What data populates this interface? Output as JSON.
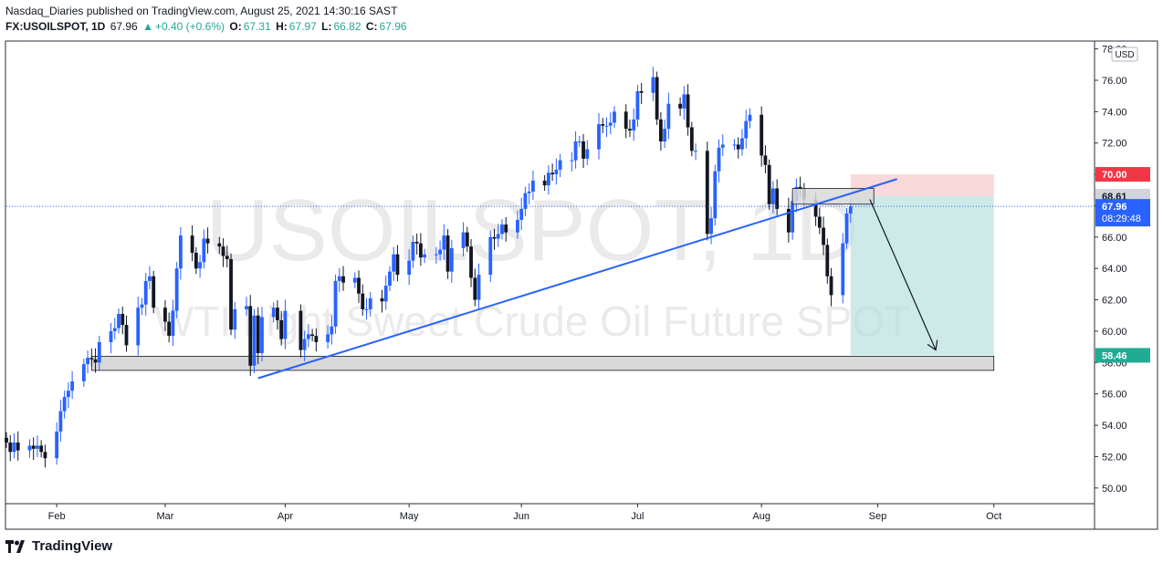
{
  "header": {
    "published_line": "Nasdaq_Diaries published on TradingView.com, August 25, 2021 14:30:16 SAST",
    "symbol": "FX:USOILSPOT, 1D",
    "last": "67.96",
    "change": "+0.40 (+0.6%)",
    "o_label": "O:",
    "o_value": "67.31",
    "h_label": "H:",
    "h_value": "67.97",
    "l_label": "L:",
    "l_value": "66.82",
    "c_label": "C:",
    "c_value": "67.96"
  },
  "watermark": {
    "symbol": "USOILSPOT, 1D",
    "description": "WTI Light Sweet Crude Oil Future SPOT"
  },
  "footer": {
    "brand": "TradingView"
  },
  "colors": {
    "up": "#2962ff",
    "down": "#131722",
    "trendline": "#2962ff",
    "stop_zone": "#f7c9c9",
    "target_zone": "#b2dfdb",
    "zone_box": "#d9d9d9",
    "price_dotted": "#2962ff"
  },
  "chart_data": {
    "type": "candlestick",
    "currency": "USD",
    "ylim": [
      49,
      78.5
    ],
    "y_ticks": [
      "50.00",
      "52.00",
      "54.00",
      "56.00",
      "58.00",
      "60.00",
      "62.00",
      "64.00",
      "66.00",
      "68.00",
      "70.00",
      "72.00",
      "74.00",
      "76.00",
      "78.00"
    ],
    "x_ticks": [
      {
        "label": "Feb",
        "date": "2021-02-01"
      },
      {
        "label": "Mar",
        "date": "2021-03-01"
      },
      {
        "label": "Apr",
        "date": "2021-04-01"
      },
      {
        "label": "May",
        "date": "2021-05-03"
      },
      {
        "label": "Jun",
        "date": "2021-06-01"
      },
      {
        "label": "Jul",
        "date": "2021-07-01"
      },
      {
        "label": "Aug",
        "date": "2021-08-02"
      },
      {
        "label": "Sep",
        "date": "2021-09-01"
      },
      {
        "label": "Oct",
        "date": "2021-10-01"
      }
    ],
    "x_range": [
      "2021-01-19",
      "2021-10-27"
    ],
    "series_close": [
      {
        "date": "2021-01-19",
        "close": 52.9
      },
      {
        "date": "2021-01-20",
        "close": 52.3
      },
      {
        "date": "2021-01-21",
        "close": 52.9
      },
      {
        "date": "2021-01-22",
        "close": 52.4
      },
      {
        "date": "2021-01-25",
        "close": 52.7
      },
      {
        "date": "2021-01-26",
        "close": 52.5
      },
      {
        "date": "2021-01-27",
        "close": 52.7
      },
      {
        "date": "2021-01-28",
        "close": 52.3
      },
      {
        "date": "2021-01-29",
        "close": 51.9
      },
      {
        "date": "2021-02-01",
        "close": 53.6
      },
      {
        "date": "2021-02-02",
        "close": 54.9
      },
      {
        "date": "2021-02-03",
        "close": 55.8
      },
      {
        "date": "2021-02-04",
        "close": 56.2
      },
      {
        "date": "2021-02-05",
        "close": 56.8
      },
      {
        "date": "2021-02-08",
        "close": 57.9
      },
      {
        "date": "2021-02-09",
        "close": 58.3
      },
      {
        "date": "2021-02-10",
        "close": 58.2
      },
      {
        "date": "2021-02-11",
        "close": 58.0
      },
      {
        "date": "2021-02-12",
        "close": 59.3
      },
      {
        "date": "2021-02-15",
        "close": 60.0
      },
      {
        "date": "2021-02-16",
        "close": 60.2
      },
      {
        "date": "2021-02-17",
        "close": 61.1
      },
      {
        "date": "2021-02-18",
        "close": 60.4
      },
      {
        "date": "2021-02-19",
        "close": 59.1
      },
      {
        "date": "2021-02-22",
        "close": 61.5
      },
      {
        "date": "2021-02-23",
        "close": 61.7
      },
      {
        "date": "2021-02-24",
        "close": 63.2
      },
      {
        "date": "2021-02-25",
        "close": 63.5
      },
      {
        "date": "2021-02-26",
        "close": 61.5
      },
      {
        "date": "2021-03-01",
        "close": 60.6
      },
      {
        "date": "2021-03-02",
        "close": 59.7
      },
      {
        "date": "2021-03-03",
        "close": 61.3
      },
      {
        "date": "2021-03-04",
        "close": 64.0
      },
      {
        "date": "2021-03-05",
        "close": 66.1
      },
      {
        "date": "2021-03-08",
        "close": 65.0
      },
      {
        "date": "2021-03-09",
        "close": 64.0
      },
      {
        "date": "2021-03-10",
        "close": 64.4
      },
      {
        "date": "2021-03-11",
        "close": 65.9
      },
      {
        "date": "2021-03-12",
        "close": 65.6
      },
      {
        "date": "2021-03-15",
        "close": 65.4
      },
      {
        "date": "2021-03-16",
        "close": 64.8
      },
      {
        "date": "2021-03-17",
        "close": 64.6
      },
      {
        "date": "2021-03-18",
        "close": 60.1
      },
      {
        "date": "2021-03-19",
        "close": 61.4
      },
      {
        "date": "2021-03-22",
        "close": 61.6
      },
      {
        "date": "2021-03-23",
        "close": 57.8
      },
      {
        "date": "2021-03-24",
        "close": 61.0
      },
      {
        "date": "2021-03-25",
        "close": 58.6
      },
      {
        "date": "2021-03-26",
        "close": 60.9
      },
      {
        "date": "2021-03-29",
        "close": 61.5
      },
      {
        "date": "2021-03-30",
        "close": 60.7
      },
      {
        "date": "2021-03-31",
        "close": 59.5
      },
      {
        "date": "2021-04-01",
        "close": 61.3
      },
      {
        "date": "2021-04-05",
        "close": 58.8
      },
      {
        "date": "2021-04-06",
        "close": 59.5
      },
      {
        "date": "2021-04-07",
        "close": 59.8
      },
      {
        "date": "2021-04-08",
        "close": 59.7
      },
      {
        "date": "2021-04-09",
        "close": 59.3
      },
      {
        "date": "2021-04-12",
        "close": 59.8
      },
      {
        "date": "2021-04-13",
        "close": 60.3
      },
      {
        "date": "2021-04-14",
        "close": 63.2
      },
      {
        "date": "2021-04-15",
        "close": 63.5
      },
      {
        "date": "2021-04-16",
        "close": 63.1
      },
      {
        "date": "2021-04-19",
        "close": 63.4
      },
      {
        "date": "2021-04-20",
        "close": 62.4
      },
      {
        "date": "2021-04-21",
        "close": 61.4
      },
      {
        "date": "2021-04-22",
        "close": 61.4
      },
      {
        "date": "2021-04-23",
        "close": 62.1
      },
      {
        "date": "2021-04-26",
        "close": 61.9
      },
      {
        "date": "2021-04-27",
        "close": 62.9
      },
      {
        "date": "2021-04-28",
        "close": 63.8
      },
      {
        "date": "2021-04-29",
        "close": 64.9
      },
      {
        "date": "2021-04-30",
        "close": 63.6
      },
      {
        "date": "2021-05-03",
        "close": 64.5
      },
      {
        "date": "2021-05-04",
        "close": 65.7
      },
      {
        "date": "2021-05-05",
        "close": 65.6
      },
      {
        "date": "2021-05-06",
        "close": 64.7
      },
      {
        "date": "2021-05-07",
        "close": 64.9
      },
      {
        "date": "2021-05-10",
        "close": 64.9
      },
      {
        "date": "2021-05-11",
        "close": 65.2
      },
      {
        "date": "2021-05-12",
        "close": 66.1
      },
      {
        "date": "2021-05-13",
        "close": 63.8
      },
      {
        "date": "2021-05-14",
        "close": 65.3
      },
      {
        "date": "2021-05-17",
        "close": 66.3
      },
      {
        "date": "2021-05-18",
        "close": 65.4
      },
      {
        "date": "2021-05-19",
        "close": 63.4
      },
      {
        "date": "2021-05-20",
        "close": 62.0
      },
      {
        "date": "2021-05-21",
        "close": 63.6
      },
      {
        "date": "2021-05-24",
        "close": 66.0
      },
      {
        "date": "2021-05-25",
        "close": 65.9
      },
      {
        "date": "2021-05-26",
        "close": 66.2
      },
      {
        "date": "2021-05-27",
        "close": 66.8
      },
      {
        "date": "2021-05-28",
        "close": 66.3
      },
      {
        "date": "2021-05-31",
        "close": 67.1
      },
      {
        "date": "2021-06-01",
        "close": 67.8
      },
      {
        "date": "2021-06-02",
        "close": 68.8
      },
      {
        "date": "2021-06-03",
        "close": 68.9
      },
      {
        "date": "2021-06-04",
        "close": 69.6
      },
      {
        "date": "2021-06-07",
        "close": 69.3
      },
      {
        "date": "2021-06-08",
        "close": 70.1
      },
      {
        "date": "2021-06-09",
        "close": 70.0
      },
      {
        "date": "2021-06-10",
        "close": 70.3
      },
      {
        "date": "2021-06-11",
        "close": 70.9
      },
      {
        "date": "2021-06-14",
        "close": 70.9
      },
      {
        "date": "2021-06-15",
        "close": 72.1
      },
      {
        "date": "2021-06-16",
        "close": 72.1
      },
      {
        "date": "2021-06-17",
        "close": 71.0
      },
      {
        "date": "2021-06-18",
        "close": 71.6
      },
      {
        "date": "2021-06-21",
        "close": 73.2
      },
      {
        "date": "2021-06-22",
        "close": 73.1
      },
      {
        "date": "2021-06-23",
        "close": 73.1
      },
      {
        "date": "2021-06-24",
        "close": 73.3
      },
      {
        "date": "2021-06-25",
        "close": 74.0
      },
      {
        "date": "2021-06-28",
        "close": 72.9
      },
      {
        "date": "2021-06-29",
        "close": 72.8
      },
      {
        "date": "2021-06-30",
        "close": 73.5
      },
      {
        "date": "2021-07-01",
        "close": 75.3
      },
      {
        "date": "2021-07-02",
        "close": 75.2
      },
      {
        "date": "2021-07-05",
        "close": 76.2
      },
      {
        "date": "2021-07-06",
        "close": 73.5
      },
      {
        "date": "2021-07-07",
        "close": 72.1
      },
      {
        "date": "2021-07-08",
        "close": 72.9
      },
      {
        "date": "2021-07-09",
        "close": 74.5
      },
      {
        "date": "2021-07-12",
        "close": 74.2
      },
      {
        "date": "2021-07-13",
        "close": 75.1
      },
      {
        "date": "2021-07-14",
        "close": 73.0
      },
      {
        "date": "2021-07-15",
        "close": 71.5
      },
      {
        "date": "2021-07-16",
        "close": 71.5
      },
      {
        "date": "2021-07-19",
        "close": 66.2
      },
      {
        "date": "2021-07-20",
        "close": 67.2
      },
      {
        "date": "2021-07-21",
        "close": 70.2
      },
      {
        "date": "2021-07-22",
        "close": 71.7
      },
      {
        "date": "2021-07-23",
        "close": 71.9
      },
      {
        "date": "2021-07-26",
        "close": 71.9
      },
      {
        "date": "2021-07-27",
        "close": 71.6
      },
      {
        "date": "2021-07-28",
        "close": 72.3
      },
      {
        "date": "2021-07-29",
        "close": 73.4
      },
      {
        "date": "2021-07-30",
        "close": 73.8
      },
      {
        "date": "2021-08-02",
        "close": 71.2
      },
      {
        "date": "2021-08-03",
        "close": 70.6
      },
      {
        "date": "2021-08-04",
        "close": 68.1
      },
      {
        "date": "2021-08-05",
        "close": 69.1
      },
      {
        "date": "2021-08-06",
        "close": 67.8
      },
      {
        "date": "2021-08-09",
        "close": 66.3
      },
      {
        "date": "2021-08-10",
        "close": 68.3
      },
      {
        "date": "2021-08-11",
        "close": 69.2
      },
      {
        "date": "2021-08-12",
        "close": 69.1
      },
      {
        "date": "2021-08-13",
        "close": 68.4
      },
      {
        "date": "2021-08-16",
        "close": 67.3
      },
      {
        "date": "2021-08-17",
        "close": 66.6
      },
      {
        "date": "2021-08-18",
        "close": 65.5
      },
      {
        "date": "2021-08-19",
        "close": 63.5
      },
      {
        "date": "2021-08-20",
        "close": 62.3
      },
      {
        "date": "2021-08-23",
        "close": 65.6
      },
      {
        "date": "2021-08-24",
        "close": 67.5
      },
      {
        "date": "2021-08-25",
        "close": 67.96
      }
    ],
    "price_labels": [
      {
        "value": 70.0,
        "text": "70.00",
        "kind": "stop"
      },
      {
        "value": 68.61,
        "text": "68.61",
        "kind": "entry"
      },
      {
        "value": 67.96,
        "text": "67.96",
        "countdown": "08:29:48",
        "kind": "last"
      },
      {
        "value": 58.46,
        "text": "58.46",
        "kind": "target"
      }
    ],
    "support_zone": {
      "from_date": "2021-02-10",
      "to_date": "2021-10-01",
      "low": 57.5,
      "high": 58.4
    },
    "resistance_box": {
      "from_date": "2021-08-10",
      "to_date": "2021-08-31",
      "low": 68.1,
      "high": 69.1
    },
    "trendline": {
      "start": {
        "date": "2021-03-25",
        "value": 57.0
      },
      "end": {
        "date": "2021-09-06",
        "value": 69.7
      }
    },
    "position": {
      "from_date": "2021-08-25",
      "to_date": "2021-10-01",
      "entry": 68.61,
      "stop": 70.0,
      "target": 58.46
    },
    "projection_arrow": {
      "start": {
        "date": "2021-08-30",
        "value": 68.4
      },
      "end": {
        "date": "2021-09-16",
        "value": 58.8
      }
    }
  }
}
